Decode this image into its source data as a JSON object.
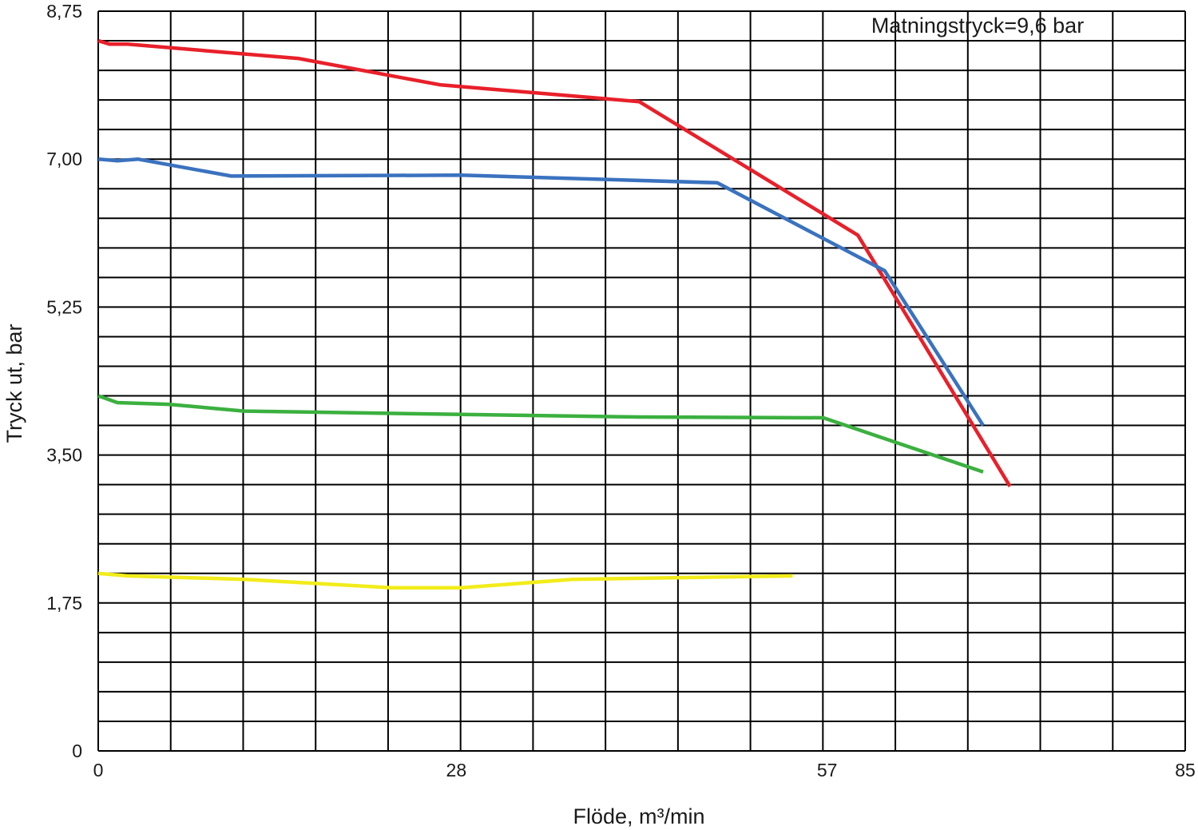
{
  "chart_data": {
    "type": "line",
    "xlabel": "Flöde, m³/min",
    "ylabel": "Tryck ut, bar",
    "annotation": "Matningstryck=9,6 bar",
    "xlim": [
      0,
      85
    ],
    "ylim": [
      0,
      8.75
    ],
    "x_ticks": [
      {
        "value": 0,
        "label": "0"
      },
      {
        "value": 28,
        "label": "28"
      },
      {
        "value": 57,
        "label": "57"
      },
      {
        "value": 85,
        "label": "85"
      }
    ],
    "y_ticks": [
      {
        "value": 0,
        "label": "0"
      },
      {
        "value": 1.75,
        "label": "1,75"
      },
      {
        "value": 3.5,
        "label": "3,50"
      },
      {
        "value": 5.25,
        "label": "5,25"
      },
      {
        "value": 7.0,
        "label": "7,00"
      },
      {
        "value": 8.75,
        "label": "8,75"
      }
    ],
    "grid": true,
    "x_grid_lines": 15,
    "y_grid_lines": 25,
    "series": [
      {
        "color": "#e8202a",
        "points": [
          [
            0,
            8.4
          ],
          [
            0.9,
            8.36
          ],
          [
            2.3,
            8.36
          ],
          [
            15.7,
            8.19
          ],
          [
            26.7,
            7.88
          ],
          [
            42.3,
            7.68
          ],
          [
            59.4,
            6.1
          ],
          [
            71.3,
            3.13
          ]
        ]
      },
      {
        "color": "#3a72bf",
        "points": [
          [
            0,
            7.0
          ],
          [
            1.5,
            6.98
          ],
          [
            3.1,
            7.0
          ],
          [
            10.4,
            6.8
          ],
          [
            28.4,
            6.81
          ],
          [
            48.4,
            6.72
          ],
          [
            61.5,
            5.68
          ],
          [
            69.2,
            3.85
          ]
        ]
      },
      {
        "color": "#3bb03f",
        "points": [
          [
            0,
            4.2
          ],
          [
            1.5,
            4.12
          ],
          [
            5.5,
            4.1
          ],
          [
            11.4,
            4.02
          ],
          [
            28.4,
            3.98
          ],
          [
            42.3,
            3.95
          ],
          [
            56.7,
            3.94
          ],
          [
            69.2,
            3.3
          ]
        ]
      },
      {
        "color": "#f2ec1a",
        "points": [
          [
            0,
            2.1
          ],
          [
            2.3,
            2.07
          ],
          [
            11.4,
            2.03
          ],
          [
            22.9,
            1.93
          ],
          [
            28.4,
            1.93
          ],
          [
            37.1,
            2.03
          ],
          [
            54.3,
            2.07
          ]
        ]
      }
    ]
  }
}
